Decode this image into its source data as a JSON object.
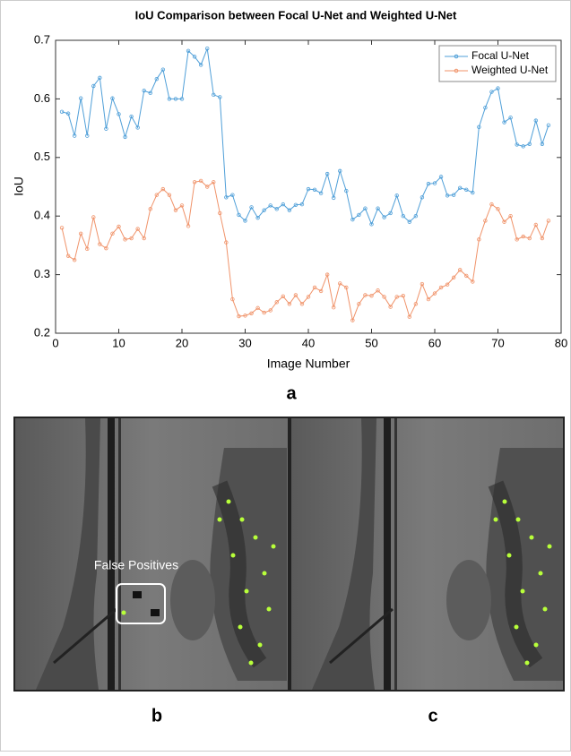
{
  "chart_data": {
    "type": "line",
    "title": "IoU Comparison between Focal U-Net and Weighted U-Net",
    "x_label": "Image Number",
    "y_label": "IoU",
    "x": [
      1,
      2,
      3,
      4,
      5,
      6,
      7,
      8,
      9,
      10,
      11,
      12,
      13,
      14,
      15,
      16,
      17,
      18,
      19,
      20,
      21,
      22,
      23,
      24,
      25,
      26,
      27,
      28,
      29,
      30,
      31,
      32,
      33,
      34,
      35,
      36,
      37,
      38,
      39,
      40,
      41,
      42,
      43,
      44,
      45,
      46,
      47,
      48,
      49,
      50,
      51,
      52,
      53,
      54,
      55,
      56,
      57,
      58,
      59,
      60,
      61,
      62,
      63,
      64,
      65,
      66,
      67,
      68,
      69,
      70,
      71,
      72,
      73,
      74,
      75,
      76,
      77,
      78
    ],
    "series": [
      {
        "name": "Focal U-Net",
        "color": "#4f9fd8",
        "values": [
          0.578,
          0.575,
          0.537,
          0.601,
          0.537,
          0.622,
          0.636,
          0.549,
          0.601,
          0.574,
          0.535,
          0.57,
          0.551,
          0.614,
          0.61,
          0.634,
          0.65,
          0.6,
          0.6,
          0.6,
          0.682,
          0.672,
          0.658,
          0.686,
          0.607,
          0.603,
          0.432,
          0.436,
          0.402,
          0.392,
          0.415,
          0.397,
          0.41,
          0.418,
          0.412,
          0.42,
          0.41,
          0.419,
          0.42,
          0.446,
          0.445,
          0.439,
          0.472,
          0.431,
          0.477,
          0.443,
          0.394,
          0.402,
          0.413,
          0.386,
          0.413,
          0.398,
          0.405,
          0.435,
          0.4,
          0.39,
          0.4,
          0.432,
          0.455,
          0.456,
          0.467,
          0.435,
          0.436,
          0.448,
          0.445,
          0.44,
          0.552,
          0.585,
          0.612,
          0.618,
          0.56,
          0.568,
          0.522,
          0.519,
          0.523,
          0.563,
          0.523,
          0.555
        ]
      },
      {
        "name": "Weighted U-Net",
        "color": "#f0936a",
        "values": [
          0.38,
          0.332,
          0.325,
          0.37,
          0.344,
          0.398,
          0.352,
          0.345,
          0.37,
          0.382,
          0.36,
          0.362,
          0.378,
          0.362,
          0.412,
          0.436,
          0.446,
          0.436,
          0.41,
          0.418,
          0.383,
          0.458,
          0.46,
          0.45,
          0.458,
          0.405,
          0.355,
          0.258,
          0.229,
          0.23,
          0.234,
          0.243,
          0.235,
          0.239,
          0.253,
          0.263,
          0.25,
          0.265,
          0.25,
          0.262,
          0.278,
          0.272,
          0.3,
          0.244,
          0.285,
          0.278,
          0.222,
          0.25,
          0.265,
          0.264,
          0.273,
          0.262,
          0.245,
          0.262,
          0.264,
          0.228,
          0.25,
          0.284,
          0.258,
          0.268,
          0.278,
          0.283,
          0.295,
          0.308,
          0.298,
          0.288,
          0.36,
          0.392,
          0.42,
          0.412,
          0.39,
          0.4,
          0.36,
          0.365,
          0.362,
          0.385,
          0.362,
          0.392
        ]
      }
    ],
    "xlim": [
      0,
      80
    ],
    "xticks": [
      0,
      10,
      20,
      30,
      40,
      50,
      60,
      70,
      80
    ],
    "ylim": [
      0.2,
      0.7
    ],
    "yticks": [
      0.2,
      0.3,
      0.4,
      0.5,
      0.6,
      0.7
    ],
    "legend": "top-right",
    "grid": false
  },
  "figure": {
    "panel_labels": [
      "a",
      "b",
      "c"
    ],
    "annotation": "False Positives"
  }
}
